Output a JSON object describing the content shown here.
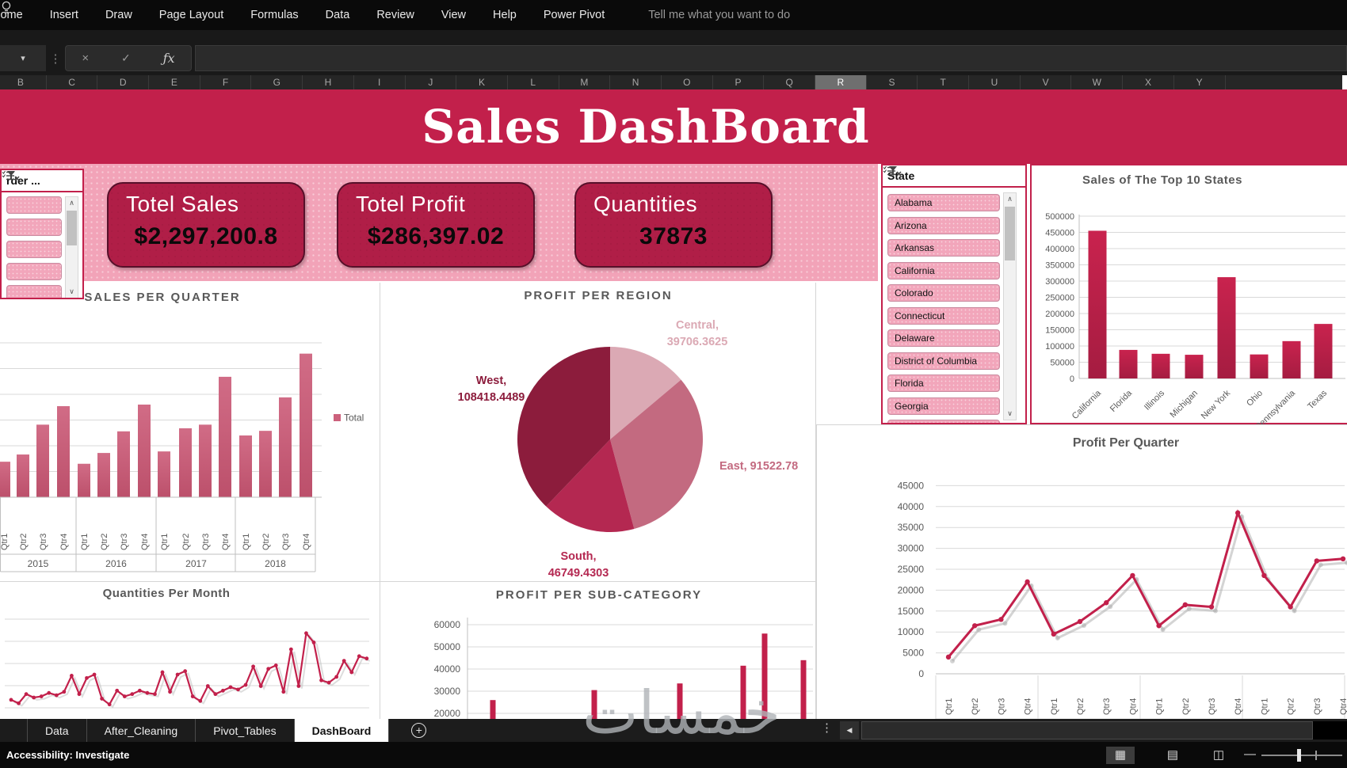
{
  "ribbon": {
    "tabs": [
      "Home",
      "Insert",
      "Draw",
      "Page Layout",
      "Formulas",
      "Data",
      "Review",
      "View",
      "Help",
      "Power Pivot"
    ],
    "tell_me": "Tell me what you want to do"
  },
  "formula_bar": {
    "name_box_value": "",
    "formula_value": ""
  },
  "column_headers": {
    "letters": [
      "B",
      "C",
      "D",
      "E",
      "F",
      "G",
      "H",
      "I",
      "J",
      "K",
      "L",
      "M",
      "N",
      "O",
      "P",
      "Q",
      "R",
      "S",
      "T",
      "U",
      "V",
      "W",
      "X",
      "Y"
    ],
    "selected": "R"
  },
  "banner": {
    "title": "Sales DashBoard"
  },
  "kpis": [
    {
      "label": "Totel Sales",
      "value": "$2,297,200.8"
    },
    {
      "label": "Totel Profit",
      "value": "$286,397.02"
    },
    {
      "label": "Quantities",
      "value": "37873"
    }
  ],
  "slicers": {
    "order": {
      "title": "rder ...",
      "items": [
        "",
        "",
        "",
        "",
        ""
      ]
    },
    "state": {
      "title": "State",
      "items": [
        "Alabama",
        "Arizona",
        "Arkansas",
        "California",
        "Colorado",
        "Connecticut",
        "Delaware",
        "District of Columbia",
        "Florida",
        "Georgia"
      ]
    }
  },
  "chart_data": [
    {
      "id": "sales_per_quarter",
      "type": "bar",
      "title": "SALES PER QUARTER",
      "legend": [
        "Total"
      ],
      "legend_position": "right",
      "categories": [
        "Qtr1",
        "Qtr2",
        "Qtr3",
        "Qtr4",
        "Qtr1",
        "Qtr2",
        "Qtr3",
        "Qtr4",
        "Qtr1",
        "Qtr2",
        "Qtr3",
        "Qtr4",
        "Qtr1",
        "Qtr2",
        "Qtr3",
        "Qtr4"
      ],
      "group_labels": [
        "2015",
        "2016",
        "2017",
        "2018"
      ],
      "values": [
        69000,
        83000,
        141000,
        177000,
        65000,
        86000,
        128000,
        180000,
        89000,
        134000,
        141000,
        234000,
        120000,
        129000,
        194000,
        279000
      ],
      "ylim": [
        0,
        300000
      ],
      "y_axis_labels_visible": false,
      "grid": true
    },
    {
      "id": "profit_per_region",
      "type": "pie",
      "title": "PROFIT PER REGION",
      "slices": [
        {
          "name": "Central",
          "value": 39706.3625,
          "color": "#DBA9B4",
          "label_lines": [
            "Central,",
            "39706.3625"
          ]
        },
        {
          "name": "East",
          "value": 91522.78,
          "color": "#C36A80",
          "label_lines": [
            "East, 91522.78"
          ]
        },
        {
          "name": "South",
          "value": 46749.4303,
          "color": "#B42851",
          "label_lines": [
            "South,",
            "46749.4303"
          ]
        },
        {
          "name": "West",
          "value": 108418.4489,
          "color": "#8C1C3C",
          "label_lines": [
            "West,",
            "108418.4489"
          ]
        }
      ]
    },
    {
      "id": "sales_top10_states",
      "type": "bar",
      "title": "Sales of The Top 10 States",
      "categories": [
        "California",
        "Florida",
        "Illinois",
        "Michigan",
        "New York",
        "Ohio",
        "Pennsylvania",
        "Texas"
      ],
      "values": [
        455000,
        88000,
        76000,
        73000,
        312000,
        74000,
        115000,
        168000
      ],
      "ylim": [
        0,
        500000
      ],
      "ytick_step": 50000,
      "grid": true
    },
    {
      "id": "profit_per_quarter",
      "type": "line",
      "title": "Profit Per Quarter",
      "categories": [
        "Qtr1",
        "Qtr2",
        "Qtr3",
        "Qtr4",
        "Qtr1",
        "Qtr2",
        "Qtr3",
        "Qtr4",
        "Qtr1",
        "Qtr2",
        "Qtr3",
        "Qtr4",
        "Qtr1",
        "Qtr2",
        "Qtr3",
        "Qtr4"
      ],
      "values": [
        4000,
        11500,
        13000,
        22000,
        9500,
        12500,
        17000,
        23500,
        11500,
        16500,
        16000,
        38500,
        23500,
        16000,
        27000,
        27500
      ],
      "ylim": [
        0,
        45000
      ],
      "ytick_step": 5000,
      "grid": true
    },
    {
      "id": "quantities_per_month",
      "type": "line",
      "title": "Quantities Per Month",
      "values": [
        180,
        150,
        230,
        200,
        210,
        240,
        220,
        250,
        390,
        230,
        370,
        400,
        190,
        140,
        260,
        210,
        230,
        260,
        240,
        230,
        420,
        250,
        400,
        430,
        210,
        170,
        300,
        230,
        260,
        290,
        270,
        310,
        470,
        300,
        450,
        480,
        250,
        620,
        300,
        760,
        680,
        350,
        330,
        380,
        520,
        420,
        560,
        540
      ],
      "grid": true
    },
    {
      "id": "profit_per_subcategory",
      "type": "bar",
      "title": "PROFIT PER SUB-CATEGORY",
      "values": [
        26000,
        30500,
        33500,
        41500,
        56000,
        44000
      ],
      "ylim": [
        20000,
        60000
      ],
      "ytick_step": 10000,
      "grid": true
    }
  ],
  "sheet_tabs": {
    "tabs": [
      "Data",
      "After_Cleaning",
      "Pivot_Tables",
      "DashBoard"
    ],
    "active": "DashBoard"
  },
  "status_bar": {
    "left": "Accessibility: Investigate"
  },
  "watermark": "خمسات",
  "colors": {
    "crimson": "#C2204B",
    "pink_band": "#F2A3B8",
    "card": "#B01E47",
    "rose_bar": "#CC617C",
    "dark_maroon": "#8C1C3C",
    "south_red": "#B42851",
    "east_rose": "#C36A80",
    "central_pink": "#DBA9B4",
    "title_gray": "#595959",
    "grid": "#D9D9D9"
  }
}
